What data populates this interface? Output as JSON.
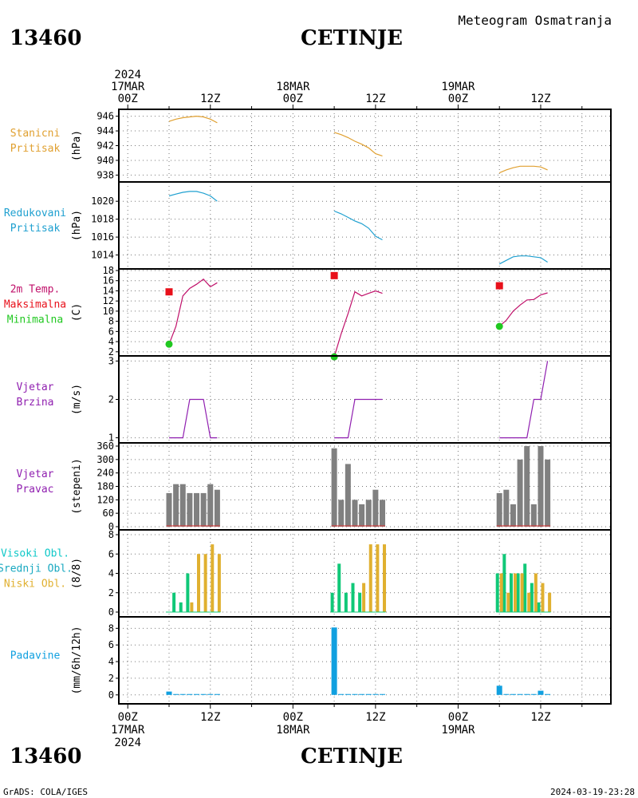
{
  "header": {
    "station_id": "13460",
    "station_name": "CETINJE",
    "subtitle": "Meteogram Osmatranja"
  },
  "footer": {
    "station_id": "13460",
    "station_name": "CETINJE",
    "credit": "GrADS: COLA/IGES",
    "timestamp": "2024-03-19-23:28"
  },
  "colors": {
    "stanicni": "#e0a030",
    "redukovani": "#1fa0d0",
    "temperature": "#c0106a",
    "maximum": "#e8101a",
    "minimum": "#20c820",
    "wind": "#9020b0",
    "direction_bar": "#808080",
    "high_cloud": "#10c8c8",
    "mid_cloud": "#10c878",
    "low_cloud": "#e0b030",
    "precip": "#10a0e0",
    "panel_label_teal": "#18a8c0"
  },
  "time_axis": {
    "top_labels": [
      {
        "t": 0,
        "lines": [
          "2024",
          "17MAR",
          "00Z"
        ]
      },
      {
        "t": 12,
        "lines": [
          "12Z"
        ]
      },
      {
        "t": 24,
        "lines": [
          "18MAR",
          "00Z"
        ]
      },
      {
        "t": 36,
        "lines": [
          "12Z"
        ]
      },
      {
        "t": 48,
        "lines": [
          "19MAR",
          "00Z"
        ]
      },
      {
        "t": 60,
        "lines": [
          "12Z"
        ]
      }
    ],
    "bottom_labels": [
      {
        "t": 0,
        "lines": [
          "00Z",
          "17MAR",
          "2024"
        ]
      },
      {
        "t": 12,
        "lines": [
          "12Z"
        ]
      },
      {
        "t": 24,
        "lines": [
          "00Z",
          "18MAR"
        ]
      },
      {
        "t": 36,
        "lines": [
          "12Z"
        ]
      },
      {
        "t": 48,
        "lines": [
          "00Z",
          "19MAR"
        ]
      },
      {
        "t": 60,
        "lines": [
          "12Z"
        ]
      }
    ]
  },
  "chart_data": [
    {
      "type": "line",
      "labels": [
        "Stanicni",
        "Pritisak"
      ],
      "label_colors": [
        "stanicni",
        "stanicni"
      ],
      "ylabel": "(hPa)",
      "ylim": [
        937.5,
        946.5
      ],
      "yticks": [
        938,
        940,
        942,
        944,
        946
      ],
      "series": [
        {
          "color": "stanicni",
          "segments": [
            [
              [
                6,
                945.3
              ],
              [
                7,
                945.6
              ],
              [
                8,
                945.8
              ],
              [
                9,
                945.9
              ],
              [
                10,
                946.0
              ],
              [
                11,
                945.9
              ],
              [
                12,
                945.6
              ],
              [
                13,
                945.1
              ]
            ],
            [
              [
                30,
                943.8
              ],
              [
                31,
                943.5
              ],
              [
                32,
                943.1
              ],
              [
                33,
                942.6
              ],
              [
                34,
                942.2
              ],
              [
                35,
                941.7
              ],
              [
                36,
                940.9
              ],
              [
                37,
                940.6
              ]
            ],
            [
              [
                54,
                938.3
              ],
              [
                55,
                938.7
              ],
              [
                56,
                939.0
              ],
              [
                57,
                939.2
              ],
              [
                58,
                939.2
              ],
              [
                59,
                939.2
              ],
              [
                60,
                939.1
              ],
              [
                61,
                938.7
              ]
            ]
          ]
        }
      ]
    },
    {
      "type": "line",
      "labels": [
        "Redukovani",
        "Pritisak"
      ],
      "label_colors": [
        "redukovani",
        "redukovani"
      ],
      "ylabel": "(hPa)",
      "ylim": [
        1012.8,
        1021.8
      ],
      "yticks": [
        1014,
        1016,
        1018,
        1020
      ],
      "series": [
        {
          "color": "redukovani",
          "segments": [
            [
              [
                6,
                1020.6
              ],
              [
                7,
                1020.8
              ],
              [
                8,
                1021.0
              ],
              [
                9,
                1021.1
              ],
              [
                10,
                1021.1
              ],
              [
                11,
                1020.9
              ],
              [
                12,
                1020.6
              ],
              [
                13,
                1020.0
              ]
            ],
            [
              [
                30,
                1018.9
              ],
              [
                31,
                1018.6
              ],
              [
                32,
                1018.2
              ],
              [
                33,
                1017.8
              ],
              [
                34,
                1017.5
              ],
              [
                35,
                1017.0
              ],
              [
                36,
                1016.1
              ],
              [
                37,
                1015.7
              ]
            ],
            [
              [
                54,
                1013.0
              ],
              [
                55,
                1013.4
              ],
              [
                56,
                1013.8
              ],
              [
                57,
                1013.9
              ],
              [
                58,
                1013.9
              ],
              [
                59,
                1013.8
              ],
              [
                60,
                1013.7
              ],
              [
                61,
                1013.2
              ]
            ]
          ]
        }
      ]
    },
    {
      "type": "line",
      "labels": [
        "2m Temp.",
        "Maksimalna",
        "Minimalna"
      ],
      "label_colors": [
        "temperature",
        "maximum",
        "minimum"
      ],
      "ylabel": "(C)",
      "ylim": [
        1.5,
        18
      ],
      "yticks": [
        2,
        4,
        6,
        8,
        10,
        12,
        14,
        16,
        18
      ],
      "series": [
        {
          "color": "temperature",
          "segments": [
            [
              [
                6,
                3.5
              ],
              [
                7,
                7.0
              ],
              [
                8,
                13.0
              ],
              [
                9,
                14.5
              ],
              [
                10,
                15.3
              ],
              [
                11,
                16.3
              ],
              [
                12,
                14.8
              ],
              [
                13,
                15.6
              ]
            ],
            [
              [
                30,
                1.0
              ],
              [
                31,
                5.5
              ],
              [
                32,
                9.5
              ],
              [
                33,
                13.8
              ],
              [
                34,
                13.0
              ],
              [
                35,
                13.5
              ],
              [
                36,
                14.0
              ],
              [
                37,
                13.5
              ]
            ],
            [
              [
                54,
                7.0
              ],
              [
                55,
                8.2
              ],
              [
                56,
                10.0
              ],
              [
                57,
                11.2
              ],
              [
                58,
                12.2
              ],
              [
                59,
                12.3
              ],
              [
                60,
                13.2
              ],
              [
                61,
                13.6
              ]
            ]
          ]
        }
      ],
      "maxima": [
        [
          6,
          13.8
        ],
        [
          30,
          17.0
        ],
        [
          54,
          15.0
        ]
      ],
      "minima": [
        [
          6,
          3.5
        ],
        [
          30,
          1.0
        ],
        [
          54,
          7.0
        ]
      ]
    },
    {
      "type": "line",
      "labels": [
        "Vjetar",
        "Brzina"
      ],
      "label_colors": [
        "wind",
        "wind"
      ],
      "ylabel": "(m/s)",
      "ylim": [
        0.95,
        3.05
      ],
      "yticks": [
        1,
        2,
        3
      ],
      "series": [
        {
          "color": "wind",
          "segments": [
            [
              [
                6,
                1
              ],
              [
                7,
                1
              ],
              [
                8,
                1
              ],
              [
                9,
                2
              ],
              [
                10,
                2
              ],
              [
                11,
                2
              ],
              [
                12,
                1
              ],
              [
                13,
                1
              ]
            ],
            [
              [
                30,
                1
              ],
              [
                31,
                1
              ],
              [
                32,
                1
              ],
              [
                33,
                2
              ],
              [
                34,
                2
              ],
              [
                35,
                2
              ],
              [
                36,
                2
              ],
              [
                37,
                2
              ]
            ],
            [
              [
                54,
                1
              ],
              [
                55,
                1
              ],
              [
                56,
                1
              ],
              [
                57,
                1
              ],
              [
                58,
                1
              ],
              [
                59,
                2
              ],
              [
                60,
                2
              ],
              [
                61,
                3
              ]
            ]
          ]
        }
      ]
    },
    {
      "type": "bar",
      "labels": [
        "Vjetar",
        "Pravac"
      ],
      "label_colors": [
        "wind",
        "wind"
      ],
      "ylabel": "(stepeni)",
      "ylim": [
        0,
        360
      ],
      "yticks": [
        0,
        60,
        120,
        180,
        240,
        300,
        360
      ],
      "bars": [
        {
          "color": "direction_bar",
          "t": [
            6,
            7,
            8,
            9,
            10,
            11,
            12,
            13
          ],
          "values": [
            150,
            190,
            190,
            150,
            150,
            150,
            190,
            165
          ]
        },
        {
          "color": "direction_bar",
          "t": [
            30,
            31,
            32,
            33,
            34,
            35,
            36,
            37
          ],
          "values": [
            350,
            120,
            280,
            120,
            100,
            120,
            165,
            120
          ]
        },
        {
          "color": "direction_bar",
          "t": [
            54,
            55,
            56,
            57,
            58,
            59,
            60,
            61
          ],
          "values": [
            150,
            165,
            100,
            300,
            360,
            100,
            360,
            300
          ]
        }
      ]
    },
    {
      "type": "bar",
      "labels": [
        "Visoki Obl.",
        "Srednji Obl.",
        "Niski Obl."
      ],
      "label_colors": [
        "high_cloud",
        "panel_label_teal",
        "low_cloud"
      ],
      "ylabel": "(8/8)",
      "ylim": [
        0,
        8
      ],
      "yticks": [
        0,
        2,
        4,
        6,
        8
      ],
      "groups": [
        {
          "name": "Srednji Obl.",
          "color": "mid_cloud",
          "t": [
            6,
            7,
            8,
            9,
            10,
            11,
            12,
            13,
            30,
            31,
            32,
            33,
            34,
            35,
            36,
            37,
            54,
            55,
            56,
            57,
            58,
            59,
            60,
            61
          ],
          "values": [
            0,
            2,
            1,
            4,
            0,
            0,
            0,
            0,
            2,
            5,
            2,
            3,
            2,
            0,
            0,
            0,
            4,
            6,
            4,
            4,
            5,
            3,
            1,
            0
          ]
        },
        {
          "name": "Niski Obl.",
          "color": "low_cloud",
          "t": [
            6,
            7,
            8,
            9,
            10,
            11,
            12,
            13,
            30,
            31,
            32,
            33,
            34,
            35,
            36,
            37,
            54,
            55,
            56,
            57,
            58,
            59,
            60,
            61
          ],
          "values": [
            0,
            0,
            0,
            1,
            6,
            6,
            7,
            6,
            0,
            0,
            0,
            0,
            3,
            7,
            7,
            7,
            4,
            2,
            4,
            4,
            2,
            4,
            3,
            2
          ]
        }
      ]
    },
    {
      "type": "bar",
      "labels": [
        "Padavine"
      ],
      "label_colors": [
        "precip"
      ],
      "ylabel": "(mm/6h/12h)",
      "ylim": [
        -0.5,
        8.8
      ],
      "yticks": [
        0,
        2,
        4,
        6,
        8
      ],
      "bars": [
        {
          "color": "precip",
          "t": [
            6,
            7,
            8,
            9,
            10,
            11,
            12,
            13,
            30,
            31,
            32,
            33,
            34,
            35,
            36,
            37,
            54,
            55,
            56,
            57,
            58,
            59,
            60,
            61
          ],
          "values": [
            0.4,
            0.1,
            0.1,
            0.1,
            0.1,
            0.1,
            0.1,
            0.1,
            8.1,
            0.1,
            0.1,
            0.1,
            0.1,
            0.1,
            0.1,
            0.1,
            1.1,
            0.1,
            0.1,
            0.1,
            0.1,
            0.1,
            0.5,
            0.1
          ]
        }
      ]
    }
  ]
}
